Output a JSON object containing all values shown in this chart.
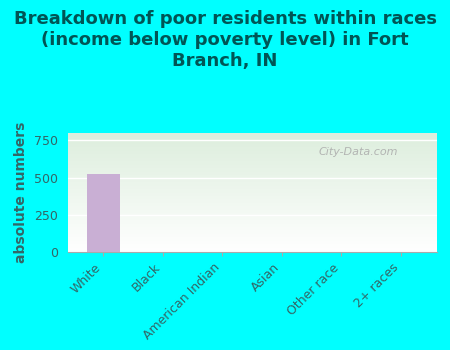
{
  "title": "Breakdown of poor residents within races\n(income below poverty level) in Fort\nBranch, IN",
  "categories": [
    "White",
    "Black",
    "American Indian",
    "Asian",
    "Other race",
    "2+ races"
  ],
  "values": [
    527,
    0,
    0,
    0,
    0,
    0
  ],
  "bar_color": "#c9afd4",
  "ylabel": "absolute numbers",
  "ylim": [
    0,
    800
  ],
  "yticks": [
    0,
    250,
    500,
    750
  ],
  "background_color": "#00ffff",
  "plot_bg_bottom": "#ffffff",
  "plot_bg_top": "#ddeedd",
  "watermark": "City-Data.com",
  "title_fontsize": 13,
  "title_color": "#005555",
  "ylabel_fontsize": 10,
  "tick_fontsize": 9,
  "label_color": "#336666"
}
